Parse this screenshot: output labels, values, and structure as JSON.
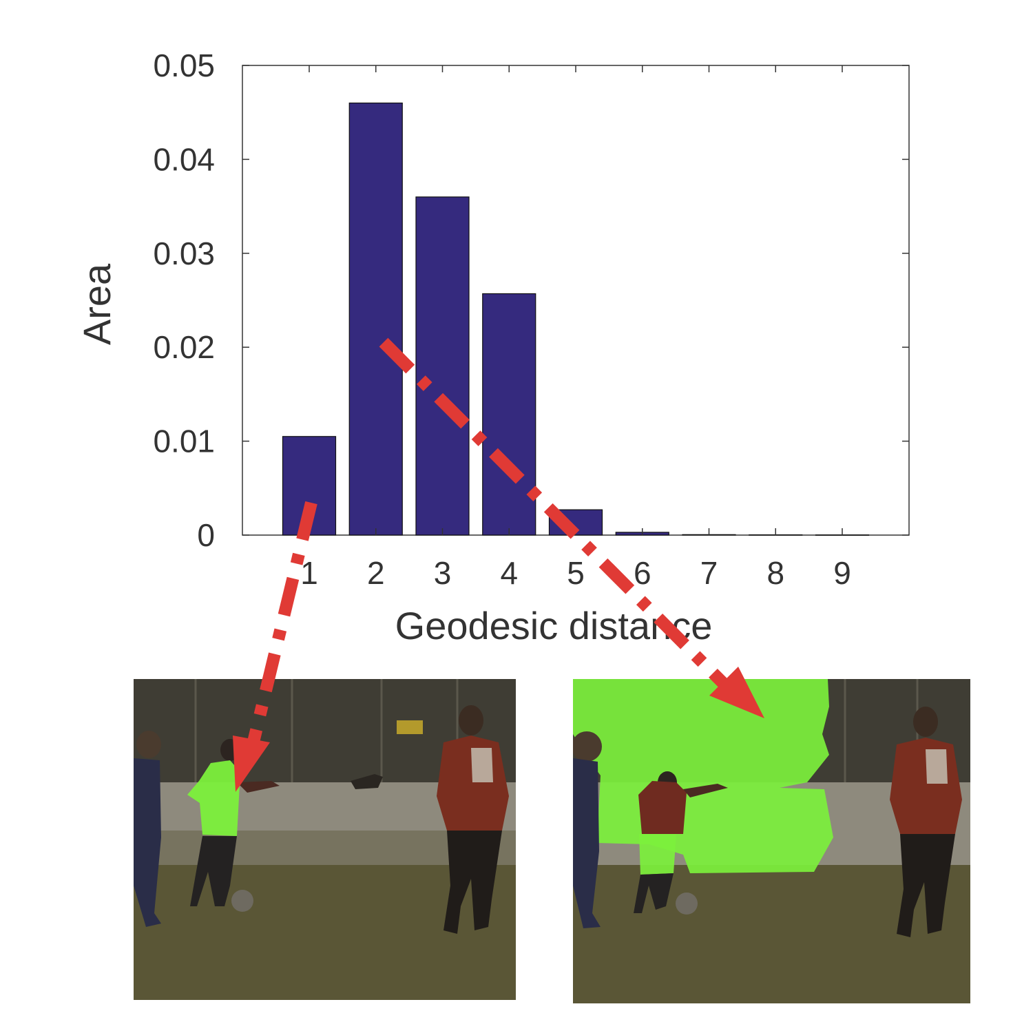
{
  "chart_data": {
    "type": "bar",
    "categories": [
      "1",
      "2",
      "3",
      "4",
      "5",
      "6",
      "7",
      "8",
      "9"
    ],
    "values": [
      0.0105,
      0.046,
      0.036,
      0.0257,
      0.0027,
      0.0003,
      5e-05,
      3e-05,
      2e-05
    ],
    "xlabel": "Geodesic distance",
    "ylabel": "Area",
    "ylim": [
      0,
      0.05
    ],
    "yticks": [
      "0",
      "0.01",
      "0.02",
      "0.03",
      "0.04",
      "0.05"
    ],
    "bar_color": "#352a7e",
    "grid": false
  },
  "colors": {
    "arrow": "#e03a35",
    "highlight": "#7cf03c",
    "axis": "#333333"
  },
  "images": {
    "left_panel": "soccer-scene-player-highlighted",
    "right_panel": "soccer-scene-background-highlighted"
  }
}
